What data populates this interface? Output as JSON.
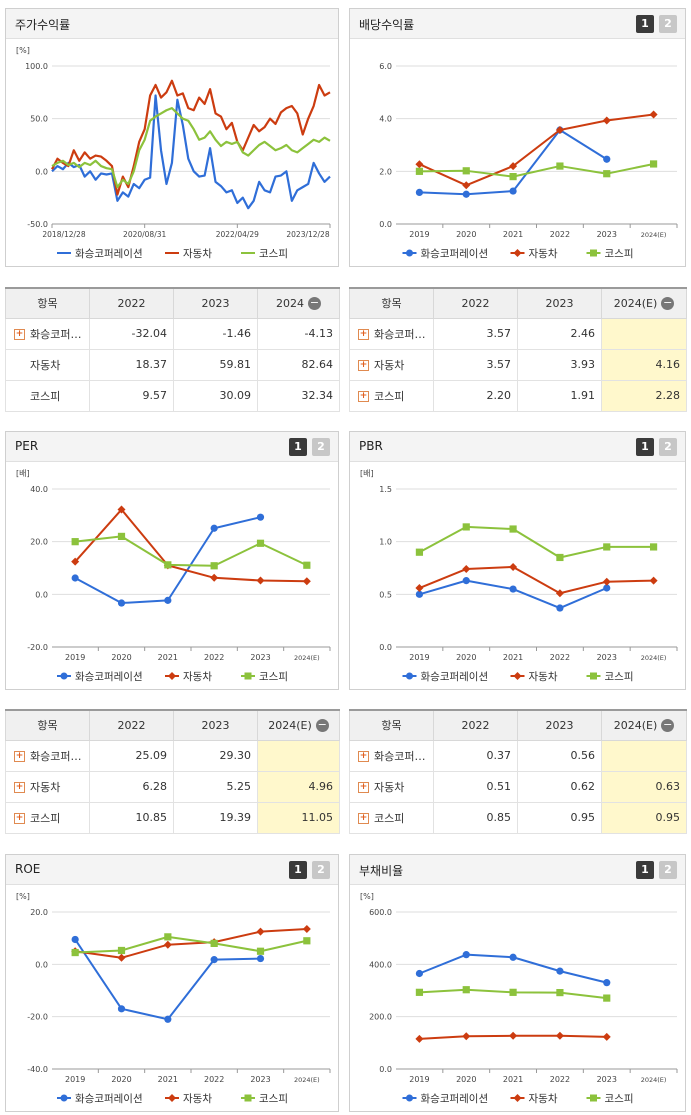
{
  "series_names": [
    "화승코퍼레이션",
    "자동차",
    "코스피"
  ],
  "colors": {
    "s0": "#2f6ed8",
    "s1": "#cc3c10",
    "s2": "#8cc23c",
    "hl": "#fff8cc"
  },
  "panels": {
    "price": {
      "title": "주가수익률",
      "unit": "[%]"
    },
    "dividend": {
      "title": "배당수익률",
      "unit": "",
      "page1": "1",
      "page2": "2"
    },
    "per": {
      "title": "PER",
      "unit": "[배]",
      "page1": "1",
      "page2": "2"
    },
    "pbr": {
      "title": "PBR",
      "unit": "[배]",
      "page1": "1",
      "page2": "2"
    },
    "roe": {
      "title": "ROE",
      "unit": "[%]",
      "page1": "1",
      "page2": "2"
    },
    "debt": {
      "title": "부채비율",
      "unit": "[%]",
      "page1": "1",
      "page2": "2"
    }
  },
  "tables": {
    "price": {
      "headers": [
        "항목",
        "2022",
        "2023",
        "2024"
      ],
      "rows": [
        {
          "name": "화승코퍼…",
          "v": [
            "-32.04",
            "-1.46",
            "-4.13"
          ]
        },
        {
          "name": "자동차",
          "v": [
            "18.37",
            "59.81",
            "82.64"
          ]
        },
        {
          "name": "코스피",
          "v": [
            "9.57",
            "30.09",
            "32.34"
          ]
        }
      ]
    },
    "dividend": {
      "headers": [
        "항목",
        "2022",
        "2023",
        "2024(E)"
      ],
      "rows": [
        {
          "name": "화승코퍼…",
          "v": [
            "3.57",
            "2.46",
            ""
          ]
        },
        {
          "name": "자동차",
          "v": [
            "3.57",
            "3.93",
            "4.16"
          ]
        },
        {
          "name": "코스피",
          "v": [
            "2.20",
            "1.91",
            "2.28"
          ]
        }
      ]
    },
    "per": {
      "headers": [
        "항목",
        "2022",
        "2023",
        "2024(E)"
      ],
      "rows": [
        {
          "name": "화승코퍼…",
          "v": [
            "25.09",
            "29.30",
            ""
          ]
        },
        {
          "name": "자동차",
          "v": [
            "6.28",
            "5.25",
            "4.96"
          ]
        },
        {
          "name": "코스피",
          "v": [
            "10.85",
            "19.39",
            "11.05"
          ]
        }
      ]
    },
    "pbr": {
      "headers": [
        "항목",
        "2022",
        "2023",
        "2024(E)"
      ],
      "rows": [
        {
          "name": "화승코퍼…",
          "v": [
            "0.37",
            "0.56",
            ""
          ]
        },
        {
          "name": "자동차",
          "v": [
            "0.51",
            "0.62",
            "0.63"
          ]
        },
        {
          "name": "코스피",
          "v": [
            "0.85",
            "0.95",
            "0.95"
          ]
        }
      ]
    }
  },
  "chart_data": [
    {
      "id": "price",
      "type": "line",
      "xticks": [
        "2018/12/28",
        "2020/08/31",
        "2022/04/29",
        "2023/12/28"
      ],
      "ylim": [
        -50,
        100
      ],
      "yticks": [
        "100.0",
        "50.0",
        "0.0",
        "-50.0"
      ],
      "series": [
        {
          "name": "화승코퍼레이션",
          "values": [
            0,
            5,
            2,
            8,
            4,
            6,
            -5,
            0,
            -8,
            -2,
            -3,
            -2,
            -28,
            -20,
            -24,
            -12,
            -16,
            -8,
            -6,
            72,
            20,
            -12,
            8,
            68,
            44,
            12,
            0,
            -5,
            -4,
            22,
            -10,
            -14,
            -20,
            -18,
            -30,
            -25,
            -35,
            -28,
            -10,
            -18,
            -20,
            -5,
            -4,
            0,
            -28,
            -18,
            -15,
            -12,
            8,
            -2,
            -10,
            -5
          ]
        },
        {
          "name": "자동차",
          "values": [
            2,
            12,
            8,
            5,
            20,
            10,
            18,
            12,
            15,
            14,
            10,
            5,
            -22,
            -5,
            -15,
            5,
            28,
            40,
            72,
            82,
            70,
            75,
            86,
            72,
            74,
            60,
            58,
            70,
            64,
            78,
            55,
            52,
            40,
            46,
            28,
            20,
            32,
            44,
            38,
            42,
            50,
            45,
            56,
            60,
            62,
            55,
            35,
            50,
            62,
            82,
            72,
            75
          ]
        },
        {
          "name": "코스피",
          "values": [
            5,
            8,
            10,
            6,
            8,
            4,
            8,
            6,
            10,
            5,
            3,
            2,
            -15,
            -8,
            -12,
            0,
            20,
            30,
            48,
            52,
            55,
            58,
            60,
            55,
            50,
            48,
            40,
            30,
            32,
            38,
            30,
            24,
            28,
            26,
            28,
            18,
            15,
            20,
            25,
            28,
            24,
            20,
            22,
            25,
            20,
            18,
            22,
            26,
            30,
            28,
            32,
            29
          ]
        }
      ]
    },
    {
      "id": "dividend",
      "type": "line",
      "categories": [
        "2019",
        "2020",
        "2021",
        "2022",
        "2023",
        "2024(E)"
      ],
      "ylim": [
        0,
        6
      ],
      "yticks": [
        "6.0",
        "4.0",
        "2.0",
        "0.0"
      ],
      "series": [
        {
          "name": "화승코퍼레이션",
          "values": [
            1.2,
            1.13,
            1.25,
            3.57,
            2.46,
            null
          ]
        },
        {
          "name": "자동차",
          "values": [
            2.27,
            1.47,
            2.2,
            3.57,
            3.93,
            4.16
          ]
        },
        {
          "name": "코스피",
          "values": [
            2.0,
            2.02,
            1.8,
            2.2,
            1.91,
            2.28
          ]
        }
      ]
    },
    {
      "id": "per",
      "type": "line",
      "categories": [
        "2019",
        "2020",
        "2021",
        "2022",
        "2023",
        "2024(E)"
      ],
      "ylim": [
        -20,
        40
      ],
      "yticks": [
        "40.0",
        "20.0",
        "0.0",
        "-20.0"
      ],
      "series": [
        {
          "name": "화승코퍼레이션",
          "values": [
            6.2,
            -3.3,
            -2.3,
            25.09,
            29.3,
            null
          ]
        },
        {
          "name": "자동차",
          "values": [
            12.4,
            32.2,
            11.0,
            6.28,
            5.25,
            4.96
          ]
        },
        {
          "name": "코스피",
          "values": [
            20.0,
            22.0,
            11.2,
            10.85,
            19.39,
            11.05
          ]
        }
      ]
    },
    {
      "id": "pbr",
      "type": "line",
      "categories": [
        "2019",
        "2020",
        "2021",
        "2022",
        "2023",
        "2024(E)"
      ],
      "ylim": [
        0,
        1.5
      ],
      "yticks": [
        "1.5",
        "1.0",
        "0.5",
        "0.0"
      ],
      "series": [
        {
          "name": "화승코퍼레이션",
          "values": [
            0.5,
            0.63,
            0.55,
            0.37,
            0.56,
            null
          ]
        },
        {
          "name": "자동차",
          "values": [
            0.56,
            0.74,
            0.76,
            0.51,
            0.62,
            0.63
          ]
        },
        {
          "name": "코스피",
          "values": [
            0.9,
            1.14,
            1.12,
            0.85,
            0.95,
            0.95
          ]
        }
      ]
    },
    {
      "id": "roe",
      "type": "line",
      "categories": [
        "2019",
        "2020",
        "2021",
        "2022",
        "2023",
        "2024(E)"
      ],
      "ylim": [
        -40,
        20
      ],
      "yticks": [
        "20.0",
        "0.0",
        "-20.0",
        "-40.0"
      ],
      "series": [
        {
          "name": "화승코퍼레이션",
          "values": [
            9.5,
            -17.0,
            -21.0,
            1.8,
            2.2,
            null
          ]
        },
        {
          "name": "자동차",
          "values": [
            5.0,
            2.5,
            7.5,
            8.5,
            12.5,
            13.5
          ]
        },
        {
          "name": "코스피",
          "values": [
            4.5,
            5.3,
            10.5,
            8.0,
            5.0,
            9.0
          ]
        }
      ]
    },
    {
      "id": "debt",
      "type": "line",
      "categories": [
        "2019",
        "2020",
        "2021",
        "2022",
        "2023",
        "2024(E)"
      ],
      "ylim": [
        0,
        600
      ],
      "yticks": [
        "600.0",
        "400.0",
        "200.0",
        "0.0"
      ],
      "series": [
        {
          "name": "화승코퍼레이션",
          "values": [
            365,
            437,
            427,
            374,
            330,
            null
          ]
        },
        {
          "name": "자동차",
          "values": [
            115,
            125,
            127,
            127,
            123,
            null
          ]
        },
        {
          "name": "코스피",
          "values": [
            293,
            303,
            293,
            292,
            271,
            null
          ]
        }
      ]
    }
  ]
}
